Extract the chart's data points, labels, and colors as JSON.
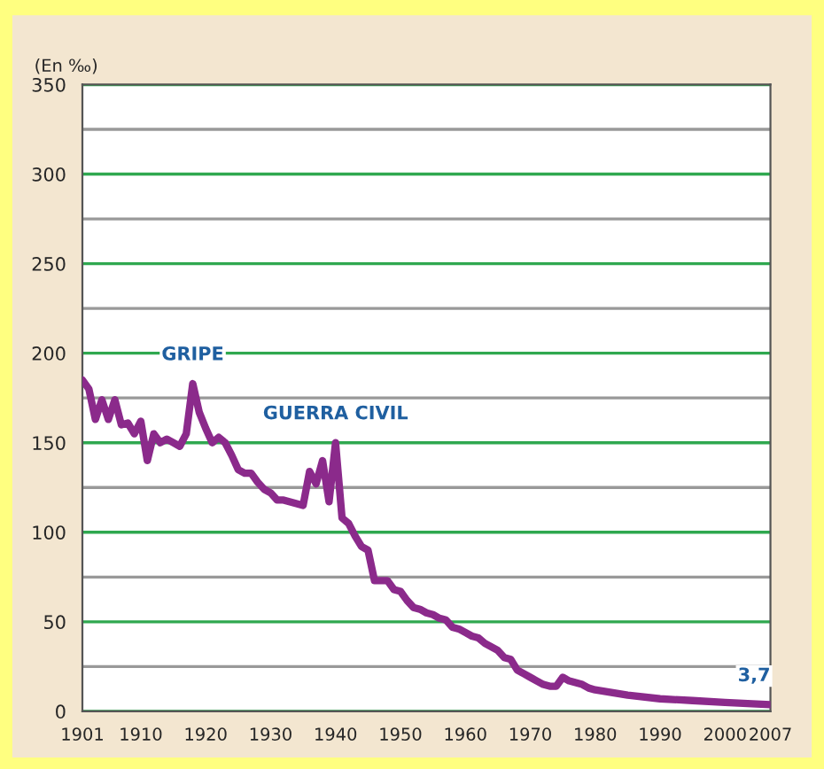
{
  "chart_data": {
    "type": "line",
    "ylabel": "(En ‰)",
    "x": [
      1901,
      1902,
      1903,
      1904,
      1905,
      1906,
      1907,
      1908,
      1909,
      1910,
      1911,
      1912,
      1913,
      1914,
      1915,
      1916,
      1917,
      1918,
      1919,
      1920,
      1921,
      1922,
      1923,
      1924,
      1925,
      1926,
      1927,
      1928,
      1929,
      1930,
      1931,
      1932,
      1933,
      1934,
      1935,
      1936,
      1937,
      1938,
      1939,
      1940,
      1941,
      1942,
      1943,
      1944,
      1945,
      1946,
      1947,
      1948,
      1949,
      1950,
      1951,
      1952,
      1953,
      1954,
      1955,
      1956,
      1957,
      1958,
      1959,
      1960,
      1961,
      1962,
      1963,
      1964,
      1965,
      1966,
      1967,
      1968,
      1969,
      1970,
      1971,
      1972,
      1973,
      1974,
      1975,
      1976,
      1977,
      1978,
      1979,
      1980,
      1985,
      1990,
      1995,
      2000,
      2007
    ],
    "series": [
      {
        "color": "#8b2a8b",
        "values": [
          185,
          180,
          163,
          174,
          163,
          174,
          160,
          161,
          155,
          162,
          140,
          155,
          150,
          152,
          150,
          148,
          155,
          183,
          167,
          158,
          150,
          153,
          150,
          143,
          135,
          133,
          133,
          128,
          124,
          122,
          118,
          118,
          117,
          116,
          115,
          134,
          127,
          140,
          117,
          150,
          108,
          105,
          98,
          92,
          90,
          73,
          73,
          73,
          68,
          67,
          62,
          58,
          57,
          55,
          54,
          52,
          51,
          47,
          46,
          44,
          42,
          41,
          38,
          36,
          34,
          30,
          29,
          23,
          21,
          19,
          17,
          15,
          14,
          14,
          19,
          17,
          16,
          15,
          13,
          12,
          9,
          7,
          6,
          5,
          3.7
        ]
      }
    ],
    "xlim": [
      1901,
      2007
    ],
    "xticks": [
      1901,
      1910,
      1920,
      1930,
      1940,
      1950,
      1960,
      1970,
      1980,
      1990,
      2000,
      2007
    ],
    "ylim": [
      0,
      350
    ],
    "yticks": [
      0,
      {
        "value": 25,
        "label": null
      },
      50,
      {
        "value": 75,
        "label": null
      },
      100,
      {
        "value": 125,
        "label": null
      },
      150,
      {
        "value": 175,
        "label": null
      },
      200,
      {
        "value": 225,
        "label": null
      },
      250,
      {
        "value": 275,
        "label": null
      },
      300,
      {
        "value": 325,
        "label": null
      },
      350
    ],
    "grid": "y",
    "marker": "none",
    "line_style": "solid",
    "annotations": [
      {
        "text": "GRIPE",
        "x": 1918,
        "y": 183
      },
      {
        "text": "GUERRA CIVIL",
        "x": 1940,
        "y": 150
      },
      {
        "text": "3,7",
        "x": 2007,
        "y": 3.7
      }
    ]
  }
}
